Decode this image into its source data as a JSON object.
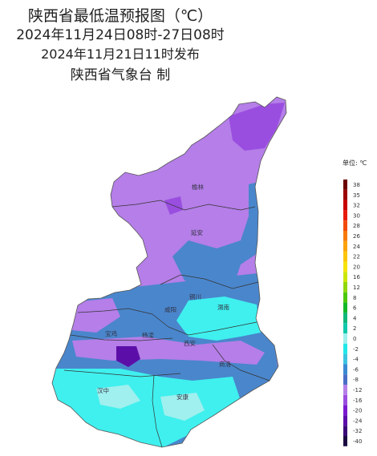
{
  "header": {
    "title": "陕西省最低温预报图（℃）",
    "period": "2024年11月24日08时-27日08时",
    "issued": "2024年11月21日11时发布",
    "publisher": "陕西省气象台 制"
  },
  "cities": [
    "榆林",
    "延安",
    "铜川",
    "咸阳",
    "渭南",
    "宝鸡",
    "杨凌",
    "西安",
    "商洛",
    "汉中",
    "安康"
  ],
  "legend": {
    "title": "单位: ℃",
    "levels": [
      {
        "label": "38",
        "color": "#6b0000"
      },
      {
        "label": "35",
        "color": "#9c0000"
      },
      {
        "label": "32",
        "color": "#c80000"
      },
      {
        "label": "30",
        "color": "#e81c0c"
      },
      {
        "label": "28",
        "color": "#f24a0c"
      },
      {
        "label": "26",
        "color": "#f77a0c"
      },
      {
        "label": "24",
        "color": "#fba20c"
      },
      {
        "label": "22",
        "color": "#fcc40c"
      },
      {
        "label": "20",
        "color": "#f6e30c"
      },
      {
        "label": "16",
        "color": "#cce60c"
      },
      {
        "label": "12",
        "color": "#8fd80c"
      },
      {
        "label": "8",
        "color": "#4cc80c"
      },
      {
        "label": "6",
        "color": "#12b82a"
      },
      {
        "label": "4",
        "color": "#0fb87a"
      },
      {
        "label": "2",
        "color": "#10c8ac"
      },
      {
        "label": "0",
        "color": "#9ff0ee"
      },
      {
        "label": "-2",
        "color": "#20e8e8"
      },
      {
        "label": "-4",
        "color": "#3cc4e0"
      },
      {
        "label": "-6",
        "color": "#3a8ad4"
      },
      {
        "label": "-8",
        "color": "#4a6ec6"
      },
      {
        "label": "-12",
        "color": "#b57ee8"
      },
      {
        "label": "-16",
        "color": "#9a4ee0"
      },
      {
        "label": "-20",
        "color": "#7a1ad0"
      },
      {
        "label": "-24",
        "color": "#5c0fa8"
      },
      {
        "label": "-32",
        "color": "#3a0a78"
      },
      {
        "label": "-40",
        "color": "#1a0a40"
      }
    ]
  },
  "colors": {
    "north_purple": "#b57ee8",
    "dark_purple": "#9a4ee0",
    "blue": "#4a86cc",
    "cyan": "#3ff0ee",
    "light_cyan": "#9ff0ee",
    "deep": "#5c0fa8"
  }
}
